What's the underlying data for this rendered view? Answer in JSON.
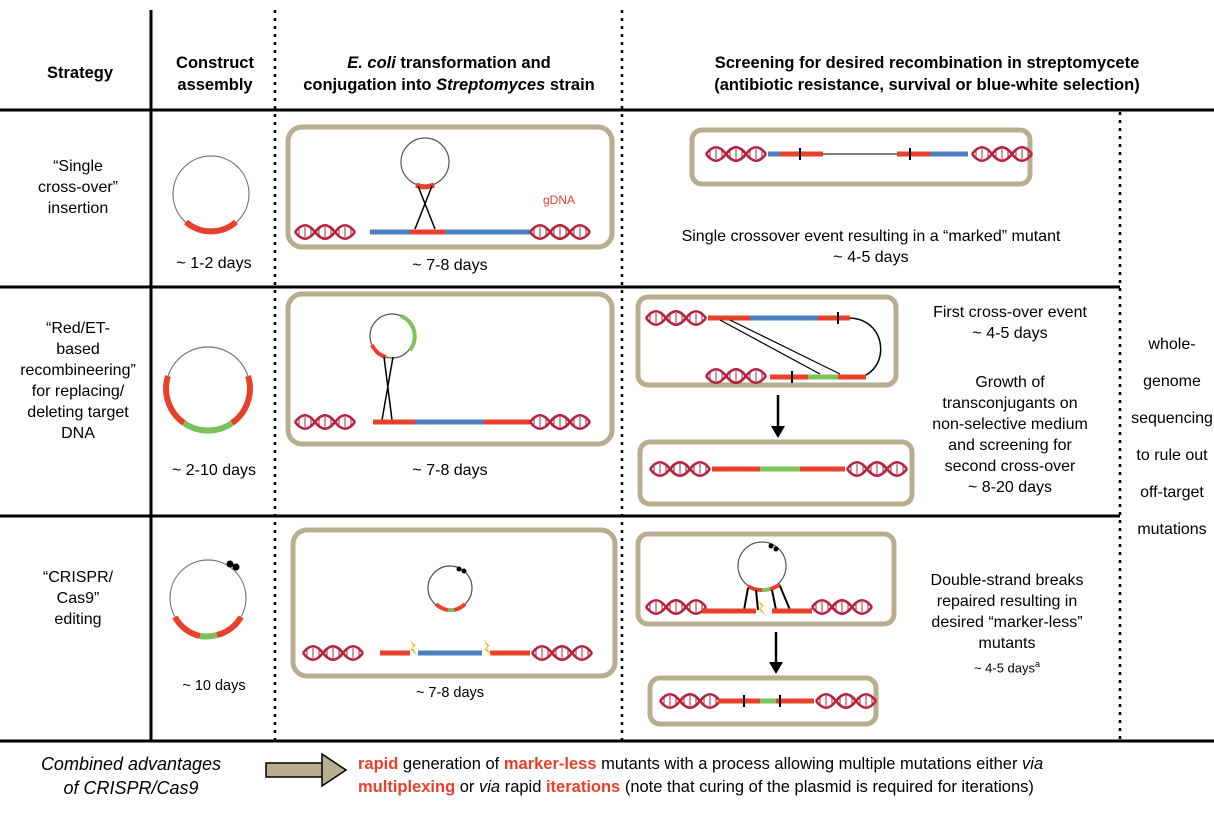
{
  "headers": {
    "strategy": "Strategy",
    "construct_line1": "Construct",
    "construct_line2": "assembly",
    "transform_italic": "E. coli",
    "transform_line1_rest": " transformation and",
    "transform_line2_pre": "conjugation into ",
    "transform_line2_italic": "Streptomyces",
    "transform_line2_post": " strain",
    "screen_line1": "Screening for desired recombination in streptomycete",
    "screen_line2": "(antibiotic resistance, survival or blue-white selection)"
  },
  "rows": [
    {
      "strategy_lines": [
        "“Single",
        "cross-over”",
        "insertion"
      ],
      "construct_days": "~ 1-2 days",
      "transform_days": "~ 7-8 days",
      "gdna_label": "gDNA",
      "screen_texts": [
        "Single crossover event resulting in a “marked” mutant",
        "~ 4-5 days"
      ]
    },
    {
      "strategy_lines": [
        "“Red/ET-",
        "based",
        "recombineering”",
        "for replacing/",
        "deleting target",
        "DNA"
      ],
      "construct_days": "~ 2-10 days",
      "transform_days": "~ 7-8 days",
      "screen_texts": [
        "First cross-over event",
        "~ 4-5 days",
        "Growth of",
        "transconjugants on",
        "non-selective medium",
        "and screening for",
        "second cross-over",
        "~ 8-20 days"
      ]
    },
    {
      "strategy_lines": [
        "“CRISPR/",
        "Cas9”",
        "editing"
      ],
      "construct_days": "~ 10 days",
      "transform_days": "~ 7-8 days",
      "screen_texts": [
        "Double-strand breaks",
        "repaired resulting in",
        "desired “marker-less”",
        "mutants",
        "~ 4-5 days",
        "a"
      ]
    }
  ],
  "wgs_lines": [
    "whole-",
    "genome",
    "sequencing",
    "to rule out",
    "off-target",
    "mutations"
  ],
  "footer": {
    "left_line1": "Combined advantages",
    "left_line2": "of CRISPR/Cas9",
    "s1": "rapid",
    "s2": " generation of ",
    "s3": "marker-less",
    "s4": " mutants with a process allowing multiple mutations either ",
    "s5": "via",
    "s6": "multiplexing",
    "s7": " or ",
    "s8": "via",
    "s9": " rapid ",
    "s10": "iterations",
    "s11": " (note that curing of the plasmid is required for iterations)"
  },
  "colors": {
    "dna": "#b5243e",
    "red_segment": "#e8402a",
    "blue_segment": "#4a7fc1",
    "green_segment": "#7cc25a",
    "box_border": "#b8ad8e",
    "accent_text": "#e8402a"
  }
}
